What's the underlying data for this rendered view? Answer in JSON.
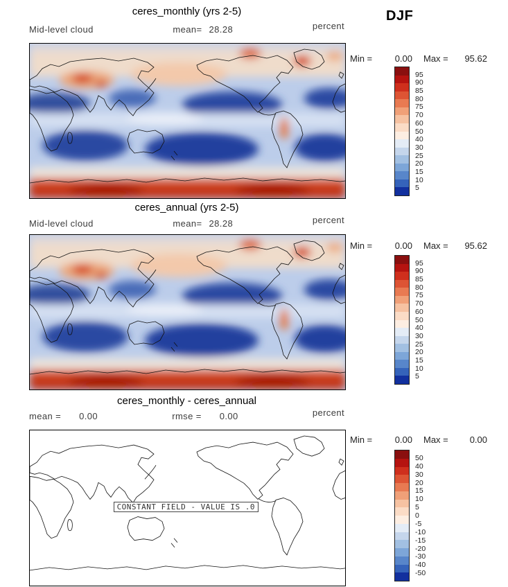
{
  "header": {
    "season": "DJF"
  },
  "panels": [
    {
      "title": "ceres_monthly (yrs 2-5)",
      "subtitle": {
        "left": "Mid-level cloud",
        "mean_label": "mean=",
        "mean_value": "28.28",
        "units": "percent"
      },
      "stats": {
        "min_label": "Min =",
        "min_value": "0.00",
        "max_label": "Max =",
        "max_value": "95.62"
      },
      "colorbar": {
        "labels": [
          "95",
          "90",
          "85",
          "80",
          "75",
          "70",
          "60",
          "50",
          "40",
          "30",
          "25",
          "20",
          "15",
          "10",
          "5"
        ],
        "colors": [
          "#8a0f0f",
          "#b51310",
          "#cf2f1d",
          "#dd5434",
          "#e87a52",
          "#f0a078",
          "#f6c2a2",
          "#fbdcc6",
          "#fdeee2",
          "#e4ecf6",
          "#c5d6ec",
          "#a2c0e2",
          "#7da6d8",
          "#5886ca",
          "#3563ba",
          "#12309e"
        ]
      }
    },
    {
      "title": "ceres_annual (yrs 2-5)",
      "subtitle": {
        "left": "Mid-level cloud",
        "mean_label": "mean=",
        "mean_value": "28.28",
        "units": "percent"
      },
      "stats": {
        "min_label": "Min =",
        "min_value": "0.00",
        "max_label": "Max =",
        "max_value": "95.62"
      },
      "colorbar": {
        "labels": [
          "95",
          "90",
          "85",
          "80",
          "75",
          "70",
          "60",
          "50",
          "40",
          "30",
          "25",
          "20",
          "15",
          "10",
          "5"
        ],
        "colors": [
          "#8a0f0f",
          "#b51310",
          "#cf2f1d",
          "#dd5434",
          "#e87a52",
          "#f0a078",
          "#f6c2a2",
          "#fbdcc6",
          "#fdeee2",
          "#e4ecf6",
          "#c5d6ec",
          "#a2c0e2",
          "#7da6d8",
          "#5886ca",
          "#3563ba",
          "#12309e"
        ]
      }
    },
    {
      "title": "ceres_monthly - ceres_annual",
      "subtitle": {
        "mean_label": "mean =",
        "mean_value": "0.00",
        "rmse_label": "rmse =",
        "rmse_value": "0.00",
        "units": "percent"
      },
      "stats": {
        "min_label": "Min =",
        "min_value": "0.00",
        "max_label": "Max =",
        "max_value": "0.00"
      },
      "colorbar": {
        "labels": [
          "50",
          "40",
          "30",
          "20",
          "15",
          "10",
          "5",
          "0",
          "-5",
          "-10",
          "-15",
          "-20",
          "-30",
          "-40",
          "-50"
        ],
        "colors": [
          "#8a0f0f",
          "#b51310",
          "#cf2f1d",
          "#dd5434",
          "#e87a52",
          "#f0a078",
          "#f6c2a2",
          "#fbdcc6",
          "#fdeee2",
          "#e4ecf6",
          "#c5d6ec",
          "#a2c0e2",
          "#7da6d8",
          "#5886ca",
          "#3563ba",
          "#12309e"
        ]
      },
      "constant_field_text": "CONSTANT FIELD - VALUE IS .0"
    }
  ],
  "chart_data": [
    {
      "type": "heatmap",
      "subtype": "global-latlon-map",
      "title": "ceres_monthly (yrs 2-5)",
      "variable": "Mid-level cloud",
      "units": "percent",
      "season": "DJF",
      "stats": {
        "mean": 28.28,
        "min": 0.0,
        "max": 95.62
      },
      "colorbar_levels": [
        5,
        10,
        15,
        20,
        25,
        30,
        40,
        50,
        60,
        70,
        75,
        80,
        85,
        90,
        95
      ],
      "colorbar_orientation": "vertical-right",
      "palette": "dark blue (low) through white to dark red (high)",
      "field_summary": "High mid-level cloud (red/orange, >70%) over the Southern Ocean and Antarctic margin and over NH mid/high latitudes with maxima near Central Asia and the North Atlantic; low values (dark blue, <20%) over subtropical oceans of both hemispheres."
    },
    {
      "type": "heatmap",
      "subtype": "global-latlon-map",
      "title": "ceres_annual (yrs 2-5)",
      "variable": "Mid-level cloud",
      "units": "percent",
      "season": "DJF",
      "stats": {
        "mean": 28.28,
        "min": 0.0,
        "max": 95.62
      },
      "colorbar_levels": [
        5,
        10,
        15,
        20,
        25,
        30,
        40,
        50,
        60,
        70,
        75,
        80,
        85,
        90,
        95
      ],
      "colorbar_orientation": "vertical-right",
      "palette": "dark blue (low) through white to dark red (high)",
      "field_summary": "Identical field to ceres_monthly panel."
    },
    {
      "type": "heatmap",
      "subtype": "global-latlon-map-difference",
      "title": "ceres_monthly - ceres_annual",
      "units": "percent",
      "stats": {
        "mean": 0.0,
        "rmse": 0.0,
        "min": 0.0,
        "max": 0.0
      },
      "colorbar_levels": [
        -50,
        -40,
        -30,
        -20,
        -15,
        -10,
        -5,
        0,
        5,
        10,
        15,
        20,
        30,
        40,
        50
      ],
      "colorbar_orientation": "vertical-right",
      "annotation": "CONSTANT FIELD - VALUE IS .0",
      "field_summary": "Difference is zero everywhere; map is blank white with coastlines only."
    }
  ]
}
